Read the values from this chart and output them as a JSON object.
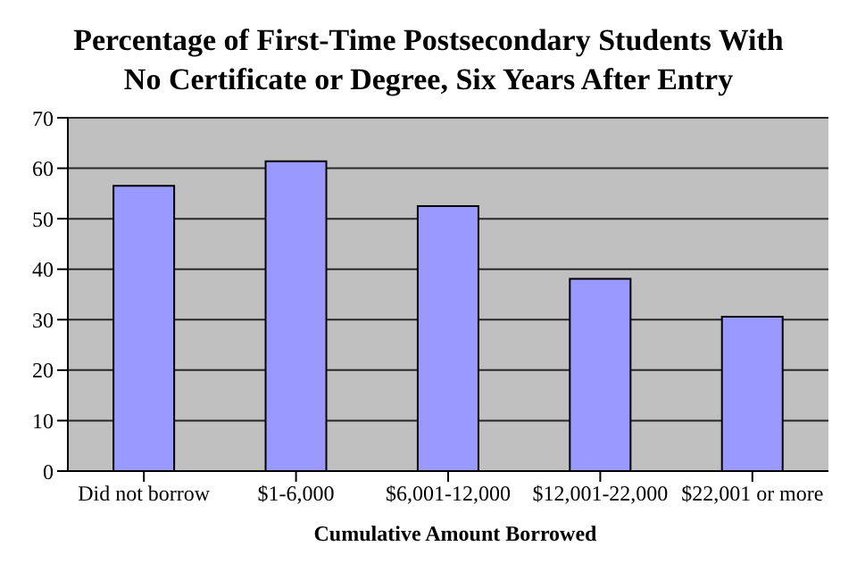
{
  "chart_data": {
    "type": "bar",
    "title": "Percentage of First-Time Postsecondary Students With No Certificate or Degree, Six Years After Entry",
    "xlabel": "Cumulative Amount Borrowed",
    "categories": [
      "Did not borrow",
      "$1-6,000",
      "$6,001-12,000",
      "$12,001-22,000",
      "$22,001 or more"
    ],
    "values": [
      56.5,
      61.4,
      52.5,
      38.1,
      30.6
    ],
    "color": "#9999ff",
    "ylim": [
      0,
      70
    ],
    "yticks": [
      0,
      10,
      20,
      30,
      40,
      50,
      60,
      70
    ],
    "grid": "y"
  }
}
